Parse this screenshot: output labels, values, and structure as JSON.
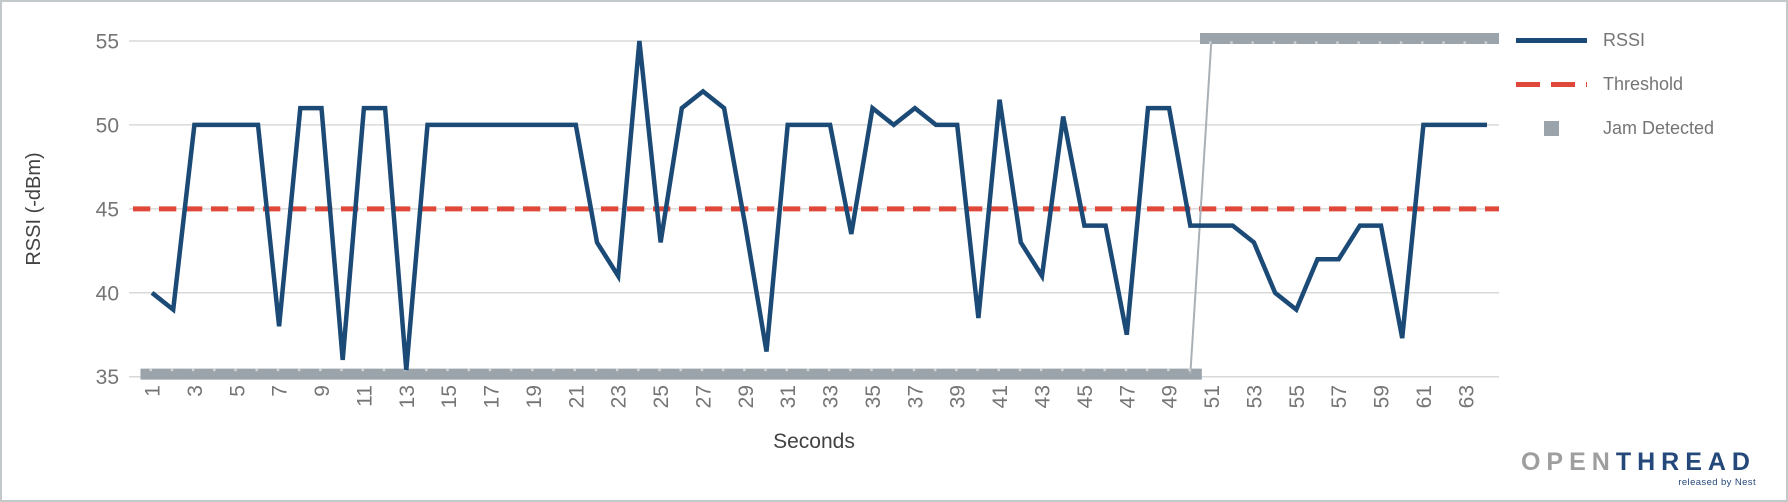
{
  "chart_data": {
    "type": "line",
    "title": "",
    "xlabel": "Seconds",
    "ylabel": "RSSI (-dBm)",
    "x_range": [
      1,
      64
    ],
    "ylim": [
      35,
      55
    ],
    "yticks": [
      55,
      50,
      45,
      40,
      35
    ],
    "x_tick_labels": [
      "1",
      "3",
      "5",
      "7",
      "9",
      "11",
      "13",
      "15",
      "17",
      "19",
      "21",
      "23",
      "25",
      "27",
      "29",
      "31",
      "33",
      "35",
      "37",
      "39",
      "41",
      "43",
      "45",
      "47",
      "49",
      "51",
      "53",
      "55",
      "57",
      "59",
      "61",
      "63"
    ],
    "grid": "horizontal",
    "legend_position": "right",
    "series": [
      {
        "name": "RSSI",
        "type": "line",
        "color": "#1b4a76",
        "x_start": 1,
        "values": [
          40,
          39,
          50,
          50,
          50,
          50,
          38,
          51,
          51,
          36,
          51,
          51,
          35.4,
          50,
          50,
          50,
          50,
          50,
          50,
          50,
          50,
          43,
          41,
          55,
          43,
          51,
          52,
          51,
          44,
          36.5,
          50,
          50,
          50,
          43.5,
          51,
          50,
          51,
          50,
          50,
          38.5,
          51.5,
          43,
          41,
          50.5,
          44,
          44,
          37.5,
          51,
          51,
          44,
          44,
          44,
          43,
          40,
          39,
          42,
          42,
          44,
          44,
          37.3,
          50,
          50,
          50,
          50
        ]
      },
      {
        "name": "Threshold",
        "type": "dashed-line",
        "color": "#e0493a",
        "value": 45
      },
      {
        "name": "Jam Detected",
        "type": "marker-band",
        "color": "#9ba4ab",
        "low_value": 35.15,
        "high_value": 55.15,
        "low_x": [
          1,
          50
        ],
        "high_x": [
          51,
          64
        ]
      }
    ]
  },
  "axis_style": {
    "tick_color": "#757575",
    "title_color": "#424242",
    "gridline_color": "#d9d9d9"
  },
  "legend": {
    "items": [
      {
        "label": "RSSI",
        "swatch": "line",
        "color": "#1b4a76"
      },
      {
        "label": "Threshold",
        "swatch": "dash",
        "color": "#e0493a"
      },
      {
        "label": "Jam Detected",
        "swatch": "square",
        "color": "#9ba4ab"
      }
    ]
  },
  "logo": {
    "text_gray": "OPEN",
    "text_blue": "THREAD",
    "tagline": "released by Nest",
    "gray_color": "#9e9e9e",
    "blue_color": "#25487a"
  }
}
